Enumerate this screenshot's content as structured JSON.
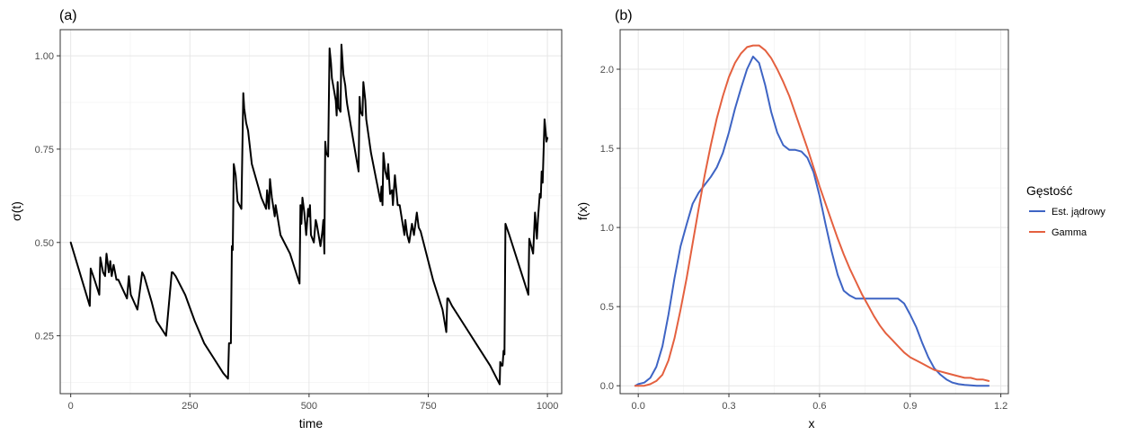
{
  "chart_data": [
    {
      "type": "line",
      "tag": "(a)",
      "xlabel": "time",
      "ylabel": "σ(t)",
      "xlim": [
        -22,
        1030
      ],
      "ylim": [
        0.095,
        1.07
      ],
      "x_ticks": [
        0,
        250,
        500,
        750,
        1000
      ],
      "x_tick_labels": [
        "0",
        "250",
        "500",
        "750",
        "1000"
      ],
      "y_ticks": [
        0.25,
        0.5,
        0.75,
        1.0
      ],
      "y_tick_labels": [
        "0.25",
        "0.50",
        "0.75",
        "1.00"
      ],
      "grid": true,
      "series": [
        {
          "color": "#000000",
          "x": [
            0,
            40,
            42,
            50,
            60,
            62,
            68,
            72,
            75,
            80,
            83,
            86,
            90,
            96,
            100,
            118,
            122,
            126,
            140,
            150,
            154,
            170,
            180,
            200,
            212,
            214,
            220,
            240,
            260,
            280,
            300,
            320,
            330,
            332,
            336,
            338,
            340,
            342,
            346,
            350,
            358,
            362,
            364,
            368,
            372,
            380,
            400,
            410,
            412,
            416,
            418,
            422,
            428,
            430,
            440,
            460,
            480,
            482,
            484,
            486,
            490,
            494,
            498,
            500,
            502,
            504,
            510,
            514,
            516,
            524,
            528,
            530,
            532,
            534,
            536,
            540,
            543,
            546,
            548,
            552,
            556,
            558,
            560,
            562,
            566,
            568,
            572,
            576,
            578,
            580,
            600,
            604,
            606,
            608,
            612,
            614,
            618,
            620,
            630,
            650,
            652,
            654,
            656,
            660,
            664,
            666,
            670,
            674,
            676,
            680,
            686,
            690,
            700,
            702,
            706,
            710,
            716,
            720,
            726,
            730,
            734,
            740,
            750,
            760,
            780,
            788,
            790,
            792,
            800,
            820,
            850,
            880,
            900,
            901,
            904,
            906,
            908,
            910,
            912,
            920,
            940,
            950,
            960,
            962,
            966,
            970,
            974,
            978,
            980,
            984,
            986,
            988,
            990,
            994,
            996,
            998,
            1000
          ],
          "y": [
            0.5,
            0.33,
            0.43,
            0.4,
            0.36,
            0.46,
            0.42,
            0.41,
            0.47,
            0.42,
            0.45,
            0.41,
            0.44,
            0.4,
            0.4,
            0.35,
            0.41,
            0.36,
            0.32,
            0.42,
            0.41,
            0.34,
            0.29,
            0.25,
            0.42,
            0.42,
            0.41,
            0.36,
            0.29,
            0.23,
            0.19,
            0.15,
            0.135,
            0.23,
            0.23,
            0.49,
            0.48,
            0.71,
            0.68,
            0.61,
            0.59,
            0.9,
            0.86,
            0.82,
            0.8,
            0.71,
            0.62,
            0.59,
            0.64,
            0.59,
            0.67,
            0.62,
            0.57,
            0.6,
            0.52,
            0.47,
            0.39,
            0.6,
            0.55,
            0.62,
            0.58,
            0.52,
            0.59,
            0.57,
            0.6,
            0.52,
            0.5,
            0.56,
            0.55,
            0.49,
            0.53,
            0.56,
            0.47,
            0.77,
            0.74,
            0.73,
            1.02,
            0.98,
            0.94,
            0.91,
            0.88,
            0.84,
            0.93,
            0.86,
            0.85,
            1.03,
            0.95,
            0.92,
            0.89,
            0.87,
            0.72,
            0.69,
            0.89,
            0.85,
            0.84,
            0.93,
            0.88,
            0.83,
            0.74,
            0.61,
            0.65,
            0.6,
            0.74,
            0.69,
            0.67,
            0.71,
            0.63,
            0.64,
            0.6,
            0.68,
            0.6,
            0.6,
            0.52,
            0.56,
            0.52,
            0.5,
            0.55,
            0.52,
            0.58,
            0.54,
            0.53,
            0.5,
            0.45,
            0.4,
            0.32,
            0.26,
            0.35,
            0.35,
            0.33,
            0.29,
            0.23,
            0.17,
            0.12,
            0.18,
            0.17,
            0.17,
            0.21,
            0.2,
            0.55,
            0.52,
            0.44,
            0.4,
            0.36,
            0.51,
            0.49,
            0.47,
            0.58,
            0.51,
            0.56,
            0.63,
            0.62,
            0.69,
            0.66,
            0.83,
            0.8,
            0.77,
            0.78
          ]
        }
      ]
    },
    {
      "type": "line",
      "tag": "(b)",
      "xlabel": "x",
      "ylabel": "f(x)",
      "xlim": [
        -0.06,
        1.225
      ],
      "ylim": [
        -0.05,
        2.25
      ],
      "x_ticks": [
        0.0,
        0.3,
        0.6,
        0.9,
        1.2
      ],
      "x_tick_labels": [
        "0.0",
        "0.3",
        "0.6",
        "0.9",
        "1.2"
      ],
      "y_ticks": [
        0.0,
        0.5,
        1.0,
        1.5,
        2.0
      ],
      "y_tick_labels": [
        "0.0",
        "0.5",
        "1.0",
        "1.5",
        "2.0"
      ],
      "grid": true,
      "legend": {
        "title": "Gęstość",
        "placement": "right"
      },
      "series": [
        {
          "name": "Est. jądrowy",
          "color": "#3e64c4",
          "x": [
            -0.01,
            0.0,
            0.02,
            0.04,
            0.06,
            0.08,
            0.1,
            0.12,
            0.14,
            0.16,
            0.18,
            0.2,
            0.22,
            0.24,
            0.26,
            0.28,
            0.3,
            0.32,
            0.34,
            0.36,
            0.38,
            0.4,
            0.42,
            0.44,
            0.46,
            0.48,
            0.5,
            0.52,
            0.54,
            0.56,
            0.58,
            0.6,
            0.62,
            0.64,
            0.66,
            0.68,
            0.7,
            0.72,
            0.74,
            0.76,
            0.78,
            0.8,
            0.82,
            0.84,
            0.86,
            0.88,
            0.9,
            0.92,
            0.94,
            0.96,
            0.98,
            1.0,
            1.02,
            1.04,
            1.06,
            1.08,
            1.1,
            1.12,
            1.14,
            1.16
          ],
          "y": [
            0.0,
            0.01,
            0.02,
            0.05,
            0.12,
            0.25,
            0.45,
            0.68,
            0.88,
            1.02,
            1.15,
            1.22,
            1.27,
            1.32,
            1.38,
            1.47,
            1.6,
            1.75,
            1.88,
            2.0,
            2.08,
            2.04,
            1.9,
            1.73,
            1.6,
            1.52,
            1.49,
            1.49,
            1.48,
            1.44,
            1.35,
            1.2,
            1.02,
            0.85,
            0.7,
            0.6,
            0.57,
            0.55,
            0.55,
            0.55,
            0.55,
            0.55,
            0.55,
            0.55,
            0.55,
            0.52,
            0.45,
            0.37,
            0.27,
            0.18,
            0.11,
            0.07,
            0.04,
            0.02,
            0.01,
            0.005,
            0.002,
            0.0,
            0.0,
            0.0
          ]
        },
        {
          "name": "Gamma",
          "color": "#e4603f",
          "x": [
            -0.01,
            0.0,
            0.02,
            0.04,
            0.06,
            0.08,
            0.1,
            0.12,
            0.14,
            0.16,
            0.18,
            0.2,
            0.22,
            0.24,
            0.26,
            0.28,
            0.3,
            0.32,
            0.34,
            0.36,
            0.38,
            0.4,
            0.42,
            0.44,
            0.46,
            0.48,
            0.5,
            0.52,
            0.54,
            0.56,
            0.58,
            0.6,
            0.62,
            0.64,
            0.66,
            0.68,
            0.7,
            0.72,
            0.74,
            0.76,
            0.78,
            0.8,
            0.82,
            0.84,
            0.86,
            0.88,
            0.9,
            0.92,
            0.94,
            0.96,
            0.98,
            1.0,
            1.02,
            1.04,
            1.06,
            1.08,
            1.1,
            1.12,
            1.14,
            1.16
          ],
          "y": [
            0.0,
            0.0,
            0.0,
            0.01,
            0.03,
            0.07,
            0.16,
            0.3,
            0.48,
            0.68,
            0.9,
            1.12,
            1.33,
            1.52,
            1.69,
            1.83,
            1.95,
            2.04,
            2.1,
            2.14,
            2.15,
            2.15,
            2.12,
            2.07,
            2.0,
            1.92,
            1.83,
            1.72,
            1.61,
            1.5,
            1.38,
            1.26,
            1.15,
            1.04,
            0.93,
            0.83,
            0.74,
            0.66,
            0.58,
            0.51,
            0.44,
            0.38,
            0.33,
            0.29,
            0.25,
            0.21,
            0.18,
            0.16,
            0.14,
            0.12,
            0.1,
            0.09,
            0.08,
            0.07,
            0.06,
            0.05,
            0.05,
            0.04,
            0.04,
            0.03
          ]
        }
      ]
    }
  ]
}
